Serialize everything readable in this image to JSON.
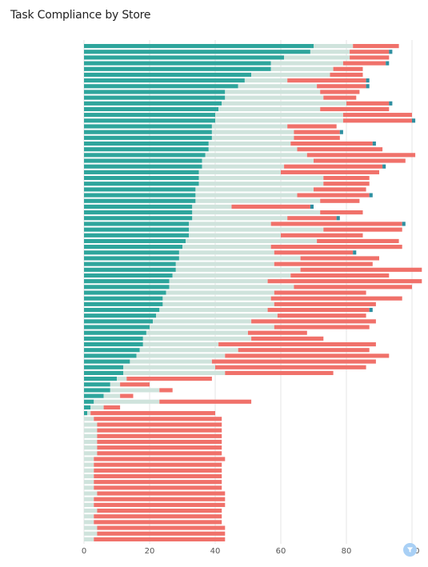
{
  "title": "Task Compliance by Store",
  "icons": {
    "filter": "filter-icon"
  },
  "chart_data": {
    "type": "bar",
    "orientation": "horizontal",
    "stacked": true,
    "title": "Task Compliance by Store",
    "xlabel": "",
    "ylabel": "",
    "xlim": [
      0,
      100
    ],
    "x_ticks": [
      "0",
      "20",
      "40",
      "60",
      "80",
      "100"
    ],
    "grid": true,
    "legend": "none",
    "colors": {
      "seg1": "#2ea59c",
      "seg2": "#cfe3dc",
      "seg3": "#f0716a",
      "seg4": "#2e8fa0"
    },
    "series": [
      {
        "values": [
          70,
          69,
          61,
          57,
          57,
          51,
          49,
          47,
          43,
          43,
          42,
          41,
          40,
          40,
          39,
          39,
          39,
          38,
          38,
          37,
          36,
          36,
          35,
          35,
          35,
          34,
          34,
          34,
          33,
          33,
          33,
          32,
          32,
          32,
          31,
          30,
          29,
          29,
          28,
          28,
          27,
          26,
          26,
          25,
          24,
          24,
          23,
          22,
          21,
          20,
          19,
          18,
          18,
          17,
          16,
          14,
          12,
          12,
          10,
          8,
          8,
          6,
          3,
          2,
          1,
          0,
          0,
          0,
          0,
          0,
          0,
          0,
          0,
          0,
          0,
          0,
          0,
          0,
          0,
          0,
          0,
          0,
          0,
          0,
          0,
          0,
          0
        ]
      },
      {
        "values": [
          12,
          12,
          20,
          22,
          19,
          24,
          13,
          24,
          29,
          30,
          38,
          31,
          39,
          39,
          23,
          25,
          25,
          25,
          27,
          31,
          34,
          25,
          25,
          38,
          38,
          36,
          31,
          38,
          12,
          39,
          29,
          25,
          41,
          28,
          40,
          27,
          29,
          37,
          30,
          38,
          36,
          30,
          38,
          33,
          33,
          34,
          33,
          37,
          30,
          38,
          31,
          33,
          23,
          30,
          27,
          25,
          28,
          31,
          3,
          3,
          15,
          5,
          20,
          4,
          1,
          3,
          4,
          4,
          4,
          4,
          4,
          4,
          3,
          3,
          3,
          3,
          3,
          3,
          4,
          3,
          3,
          4,
          3,
          3,
          4,
          4,
          3
        ]
      },
      {
        "values": [
          14,
          12,
          12,
          13,
          9,
          10,
          24,
          15,
          12,
          10,
          13,
          21,
          21,
          21,
          15,
          14,
          14,
          25,
          26,
          33,
          28,
          30,
          30,
          14,
          14,
          16,
          22,
          12,
          24,
          13,
          15,
          40,
          24,
          25,
          25,
          40,
          24,
          24,
          30,
          37,
          30,
          47,
          36,
          28,
          40,
          31,
          31,
          27,
          38,
          29,
          18,
          22,
          48,
          40,
          50,
          50,
          46,
          33,
          26,
          9,
          4,
          4,
          28,
          5,
          38,
          39,
          38,
          38,
          38,
          38,
          38,
          38,
          40,
          39,
          39,
          39,
          39,
          39,
          39,
          40,
          40,
          38,
          39,
          39,
          39,
          39,
          40
        ]
      },
      {
        "values": [
          0,
          1,
          0,
          1,
          0,
          0,
          1,
          1,
          0,
          0,
          1,
          0,
          0,
          1,
          0,
          1,
          0,
          1,
          0,
          0,
          0,
          1,
          0,
          0,
          0,
          0,
          1,
          0,
          1,
          0,
          1,
          1,
          0,
          0,
          0,
          0,
          1,
          0,
          0,
          0,
          0,
          0,
          0,
          0,
          0,
          0,
          1,
          0,
          0,
          0,
          0,
          0,
          0,
          0,
          0,
          0,
          0,
          0,
          0,
          0,
          0,
          0,
          0,
          0,
          0,
          0,
          0,
          0,
          0,
          0,
          0,
          0,
          0,
          0,
          0,
          0,
          0,
          0,
          0,
          0,
          0,
          0,
          0,
          0,
          0,
          0,
          0
        ]
      }
    ]
  }
}
